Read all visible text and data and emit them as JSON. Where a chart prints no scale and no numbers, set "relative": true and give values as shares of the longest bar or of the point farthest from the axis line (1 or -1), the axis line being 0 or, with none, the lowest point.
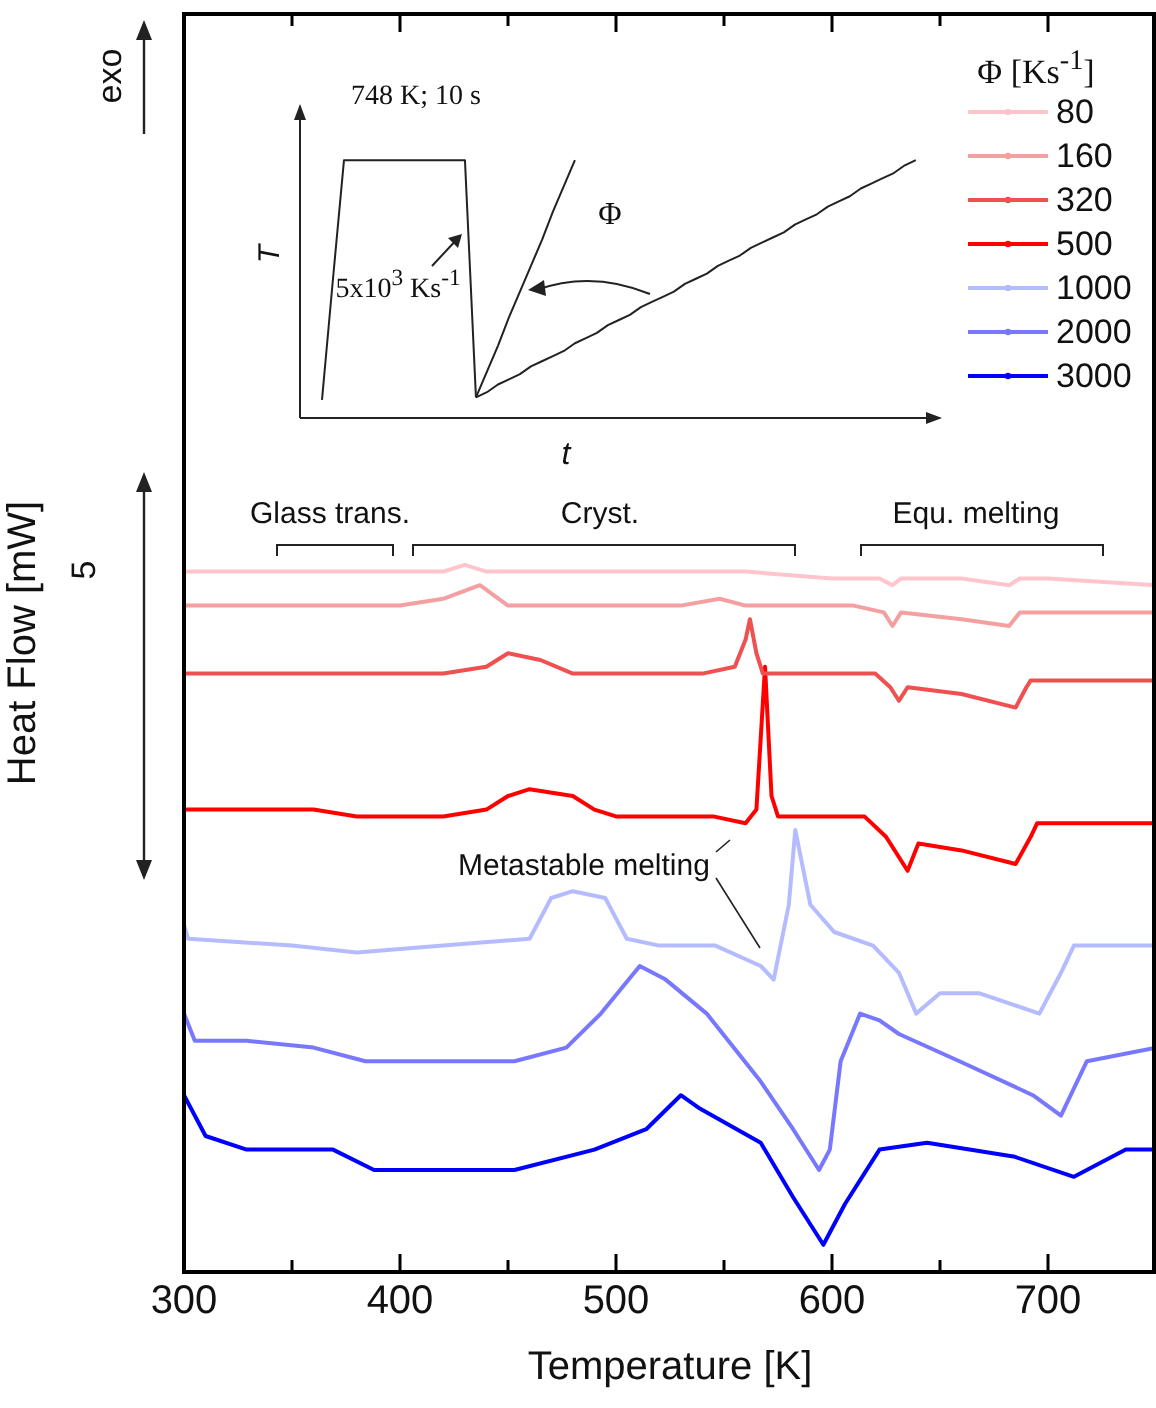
{
  "chart_data": [
    {
      "type": "line",
      "xlabel": "Temperature [K]",
      "ylabel": "Heat Flow [mW]",
      "legend_title": "Φ [Ks$^{-1}$]",
      "legend": "top right",
      "relative": true,
      "xlim": [
        300,
        750
      ],
      "xticks": [
        300,
        {
          "value": 350,
          "label": null
        },
        400,
        {
          "value": 450,
          "label": null
        },
        500,
        {
          "value": 550,
          "label": null
        },
        600,
        {
          "value": 650,
          "label": null
        },
        700
      ],
      "annotations": [
        "exo",
        "5",
        "Glass trans.",
        "Cryst.",
        "Equ. melting",
        "Metastable melting"
      ],
      "series": [
        {
          "name": "80",
          "color": "#ffc4cc",
          "x": [
            300,
            400,
            420,
            430,
            440,
            500,
            535,
            560,
            600,
            622,
            628,
            632,
            660,
            682,
            687,
            700,
            750
          ],
          "values": [
            0.99,
            0.99,
            0.99,
            1.0,
            0.99,
            0.99,
            0.99,
            0.99,
            0.98,
            0.98,
            0.97,
            0.98,
            0.98,
            0.97,
            0.98,
            0.98,
            0.97
          ]
        },
        {
          "name": "160",
          "color": "#f4a0a0",
          "x": [
            300,
            400,
            420,
            437,
            450,
            500,
            530,
            548,
            560,
            610,
            624,
            628,
            632,
            660,
            682,
            687,
            700,
            750
          ],
          "values": [
            0.94,
            0.94,
            0.95,
            0.97,
            0.94,
            0.94,
            0.94,
            0.95,
            0.94,
            0.94,
            0.93,
            0.91,
            0.93,
            0.92,
            0.91,
            0.93,
            0.93,
            0.93
          ]
        },
        {
          "name": "320",
          "color": "#f05050",
          "x": [
            300,
            360,
            380,
            420,
            440,
            450,
            465,
            480,
            500,
            540,
            555,
            560,
            562,
            565,
            568,
            620,
            627,
            631,
            635,
            660,
            685,
            690,
            692,
            750
          ],
          "values": [
            0.84,
            0.84,
            0.84,
            0.84,
            0.85,
            0.87,
            0.86,
            0.84,
            0.84,
            0.84,
            0.85,
            0.89,
            0.92,
            0.87,
            0.84,
            0.84,
            0.82,
            0.8,
            0.82,
            0.81,
            0.79,
            0.82,
            0.83,
            0.83
          ]
        },
        {
          "name": "500",
          "color": "#ff0000",
          "x": [
            300,
            360,
            380,
            420,
            440,
            450,
            460,
            480,
            490,
            500,
            545,
            560,
            565,
            569,
            572,
            575,
            600,
            615,
            625,
            635,
            640,
            660,
            685,
            692,
            695,
            750
          ],
          "values": [
            0.64,
            0.64,
            0.63,
            0.63,
            0.64,
            0.66,
            0.67,
            0.66,
            0.64,
            0.63,
            0.63,
            0.62,
            0.64,
            0.85,
            0.66,
            0.63,
            0.63,
            0.63,
            0.6,
            0.55,
            0.59,
            0.58,
            0.56,
            0.6,
            0.62,
            0.62
          ]
        },
        {
          "name": "1000",
          "color": "#b4bcff",
          "x": [
            300,
            302,
            350,
            380,
            420,
            460,
            470,
            480,
            495,
            505,
            520,
            546,
            567,
            573,
            580,
            583,
            590,
            601,
            619,
            631,
            639,
            650,
            668,
            696,
            706,
            712,
            750
          ],
          "values": [
            0.47,
            0.45,
            0.44,
            0.43,
            0.44,
            0.45,
            0.51,
            0.52,
            0.51,
            0.45,
            0.44,
            0.44,
            0.41,
            0.39,
            0.5,
            0.61,
            0.5,
            0.46,
            0.44,
            0.4,
            0.34,
            0.37,
            0.37,
            0.34,
            0.4,
            0.44,
            0.44
          ]
        },
        {
          "name": "2000",
          "color": "#7878ff",
          "x": [
            300,
            305,
            329,
            360,
            384,
            421,
            453,
            477,
            493,
            511,
            523,
            542,
            567,
            582,
            594,
            599,
            604,
            613,
            622,
            631,
            659,
            693,
            706,
            718,
            750
          ],
          "values": [
            0.34,
            0.3,
            0.3,
            0.29,
            0.27,
            0.27,
            0.27,
            0.29,
            0.34,
            0.41,
            0.39,
            0.34,
            0.24,
            0.17,
            0.11,
            0.14,
            0.27,
            0.34,
            0.33,
            0.31,
            0.27,
            0.22,
            0.19,
            0.27,
            0.29
          ]
        },
        {
          "name": "3000",
          "color": "#0000ff",
          "x": [
            300,
            310,
            329,
            369,
            388,
            400,
            453,
            490,
            514,
            530,
            539,
            567,
            582,
            596,
            606,
            622,
            644,
            684,
            712,
            736,
            750
          ],
          "values": [
            0.22,
            0.16,
            0.14,
            0.14,
            0.11,
            0.11,
            0.11,
            0.14,
            0.17,
            0.22,
            0.2,
            0.15,
            0.07,
            0.0,
            0.06,
            0.14,
            0.15,
            0.13,
            0.1,
            0.14,
            0.14
          ]
        }
      ]
    },
    {
      "type": "line",
      "xlabel": "t",
      "ylabel": "T",
      "relative": true,
      "annotations": [
        "748 K; 10 s",
        "Φ",
        "5x10$^{3}$ Ks$^{-1}$"
      ],
      "categories": [
        null,
        null,
        null,
        null,
        null,
        null,
        null,
        null,
        null,
        null,
        null,
        null,
        null,
        null,
        null,
        null,
        null,
        null,
        null,
        null,
        null,
        null,
        null,
        null,
        null,
        null,
        null,
        null,
        null,
        null,
        null,
        null,
        null,
        null,
        null,
        null,
        null,
        null,
        null,
        null,
        null,
        null,
        null,
        null,
        null,
        null,
        null,
        null,
        null,
        null,
        null,
        null,
        null,
        null,
        null
      ],
      "series": [
        {
          "color": "#222222",
          "values": [
            0.07,
            0.54,
            1.0,
            1.0,
            1.0,
            1.0,
            1.0,
            1.0,
            1.0,
            1.0,
            1.0,
            1.0,
            1.0,
            1.0,
            0.08,
            null,
            null,
            null,
            null,
            null,
            null,
            null,
            null,
            null,
            null,
            null,
            null,
            null,
            null,
            null,
            null,
            null,
            null,
            null,
            null,
            null,
            null,
            null,
            null,
            null,
            null,
            null,
            null,
            null,
            null,
            null,
            null,
            null,
            null,
            null,
            null,
            null,
            null,
            null,
            null
          ]
        },
        {
          "color": "#222222",
          "values": [
            null,
            null,
            null,
            null,
            null,
            null,
            null,
            null,
            null,
            null,
            null,
            null,
            null,
            null,
            0.08,
            0.18,
            0.28,
            0.39,
            0.49,
            0.59,
            0.69,
            0.8,
            0.9,
            1.0,
            null,
            null,
            null,
            null,
            null,
            null,
            null,
            null,
            null,
            null,
            null,
            null,
            null,
            null,
            null,
            null,
            null,
            null,
            null,
            null,
            null,
            null,
            null,
            null,
            null,
            null,
            null,
            null,
            null,
            null,
            null
          ]
        },
        {
          "color": "#222222",
          "values": [
            null,
            null,
            null,
            null,
            null,
            null,
            null,
            null,
            null,
            null,
            null,
            null,
            null,
            null,
            0.08,
            0.1,
            0.13,
            0.15,
            0.17,
            0.2,
            0.22,
            0.24,
            0.26,
            0.29,
            0.31,
            0.33,
            0.36,
            0.38,
            0.4,
            0.43,
            0.45,
            0.47,
            0.49,
            0.52,
            0.54,
            0.56,
            0.59,
            0.61,
            0.63,
            0.66,
            0.68,
            0.7,
            0.72,
            0.75,
            0.77,
            0.79,
            0.82,
            0.84,
            0.86,
            0.89,
            0.91,
            0.93,
            0.95,
            0.98,
            1.0
          ]
        }
      ]
    }
  ]
}
